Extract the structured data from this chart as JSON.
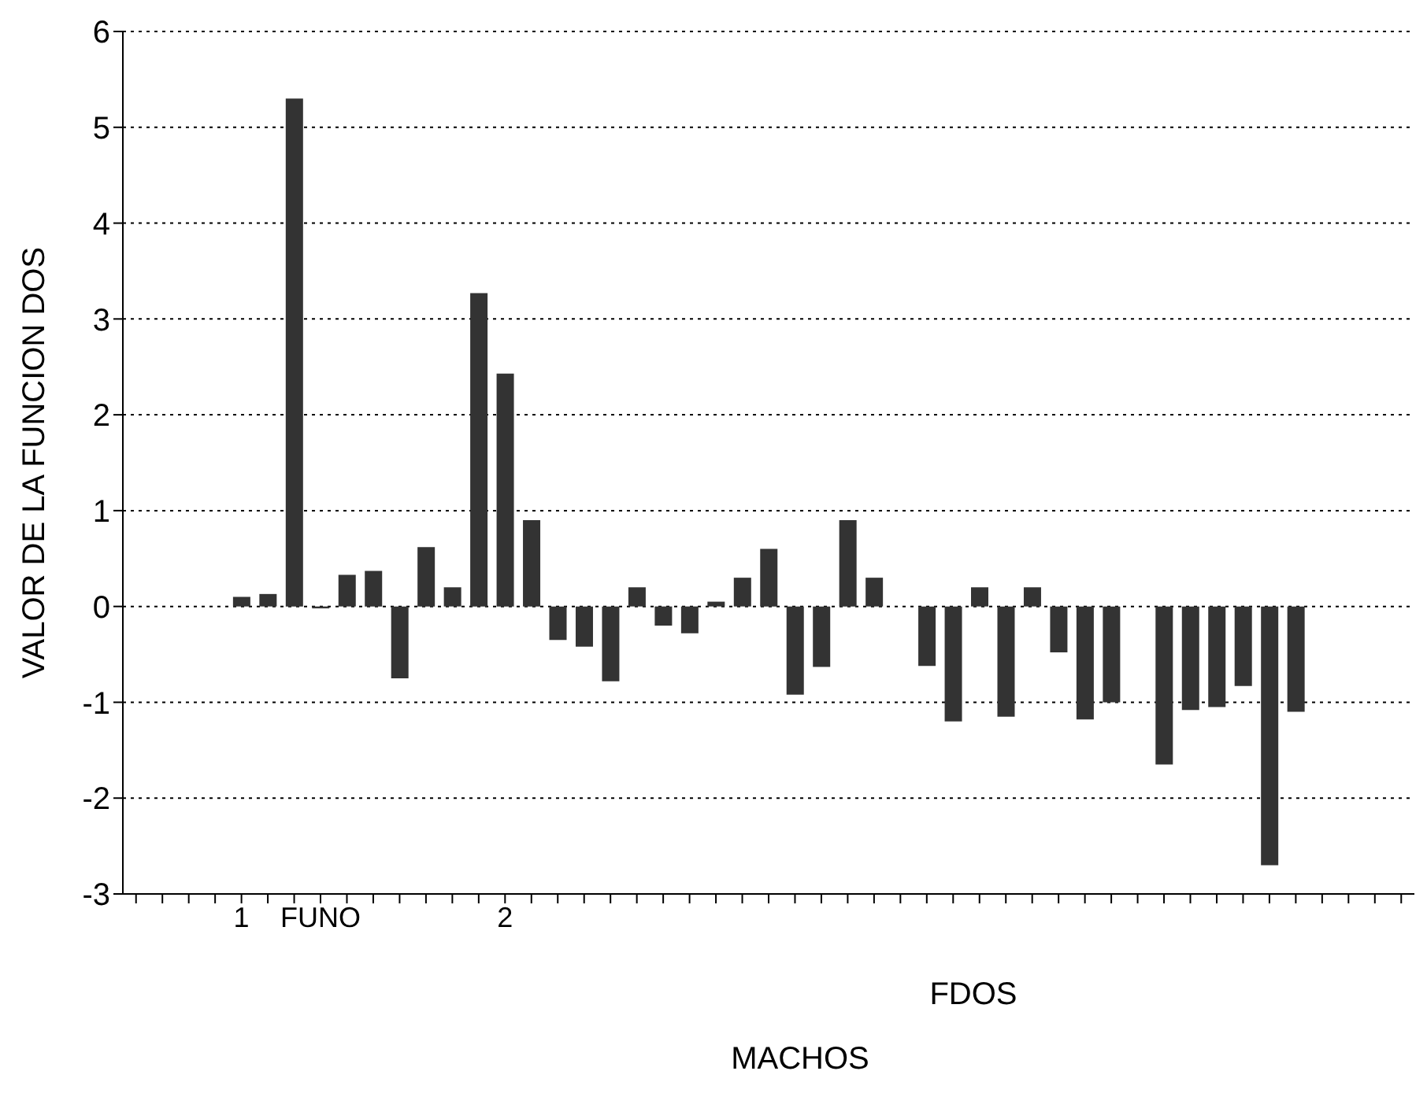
{
  "chart_data": {
    "type": "bar",
    "ylabel": "VALOR DE LA FUNCION DOS",
    "xlabel": "FDOS",
    "annotations": [
      "MACHOS"
    ],
    "categories": [
      null,
      null,
      null,
      null,
      "1",
      null,
      null,
      "FUNO",
      null,
      null,
      null,
      null,
      null,
      null,
      "2",
      null,
      null,
      null,
      null,
      null,
      null,
      null,
      null,
      null,
      null,
      null,
      null,
      null,
      null,
      null,
      null,
      null,
      null,
      null,
      null,
      null,
      null,
      null,
      null,
      null,
      null,
      null,
      null,
      null,
      null,
      null,
      null,
      null,
      null
    ],
    "values": [
      null,
      null,
      null,
      null,
      0.1,
      0.13,
      5.3,
      -0.02,
      0.33,
      0.37,
      -0.75,
      0.62,
      0.2,
      3.27,
      2.43,
      0.9,
      -0.35,
      -0.42,
      -0.78,
      0.2,
      -0.2,
      -0.28,
      0.05,
      0.3,
      0.6,
      -0.92,
      -0.63,
      0.9,
      0.3,
      0,
      -0.62,
      -1.2,
      0.2,
      -1.15,
      0.2,
      -0.48,
      -1.18,
      -1,
      0,
      -1.65,
      -1.08,
      -1.05,
      -0.83,
      -2.7,
      -1.1,
      null,
      null,
      null,
      null
    ],
    "color": "#333333",
    "ylim": [
      -3,
      6
    ],
    "yticks": [
      -3,
      -2,
      -1,
      0,
      1,
      2,
      3,
      4,
      5,
      6
    ],
    "grid": "y"
  }
}
